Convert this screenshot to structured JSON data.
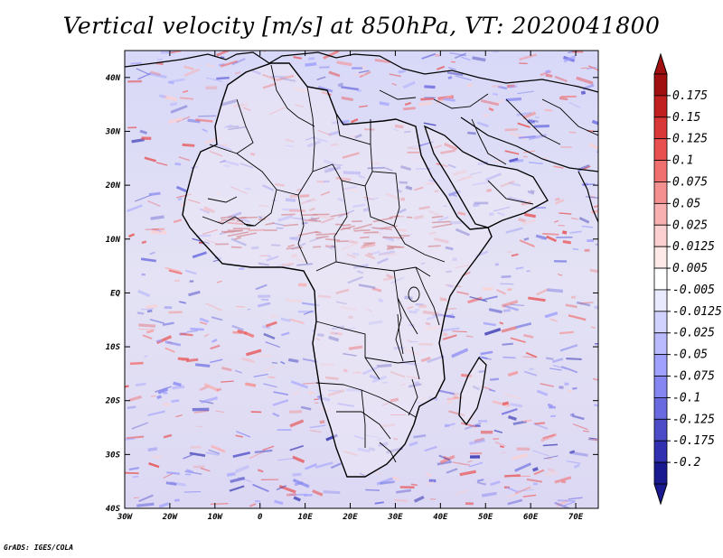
{
  "title": "Vertical velocity [m/s] at 850hPa, VT: 2020041800",
  "footer": "GrADS: IGES/COLA",
  "map": {
    "lon_range": [
      -30,
      75
    ],
    "lat_range": [
      -40,
      45
    ],
    "x_ticks": [
      "30W",
      "20W",
      "10W",
      "0",
      "10E",
      "20E",
      "30E",
      "40E",
      "50E",
      "60E",
      "70E"
    ],
    "y_ticks": [
      "40S",
      "30S",
      "20S",
      "10S",
      "EQ",
      "10N",
      "20N",
      "30N",
      "40N"
    ]
  },
  "colorbar": {
    "labels": [
      "0.175",
      "0.15",
      "0.125",
      "0.1",
      "0.075",
      "0.05",
      "0.025",
      "0.0125",
      "0.005",
      "-0.005",
      "-0.0125",
      "-0.025",
      "-0.05",
      "-0.075",
      "-0.1",
      "-0.125",
      "-0.175",
      "-0.2"
    ],
    "colors": [
      "#a01010",
      "#c02020",
      "#d83838",
      "#e85050",
      "#f07070",
      "#f49090",
      "#f8b0b0",
      "#fcd0d0",
      "#fee8e8",
      "#ffffff",
      "#eaeaff",
      "#d2d2ff",
      "#babaff",
      "#a0a0ff",
      "#8686f2",
      "#6a6ae0",
      "#4c4cc8",
      "#3030b0",
      "#1a1a90"
    ]
  }
}
